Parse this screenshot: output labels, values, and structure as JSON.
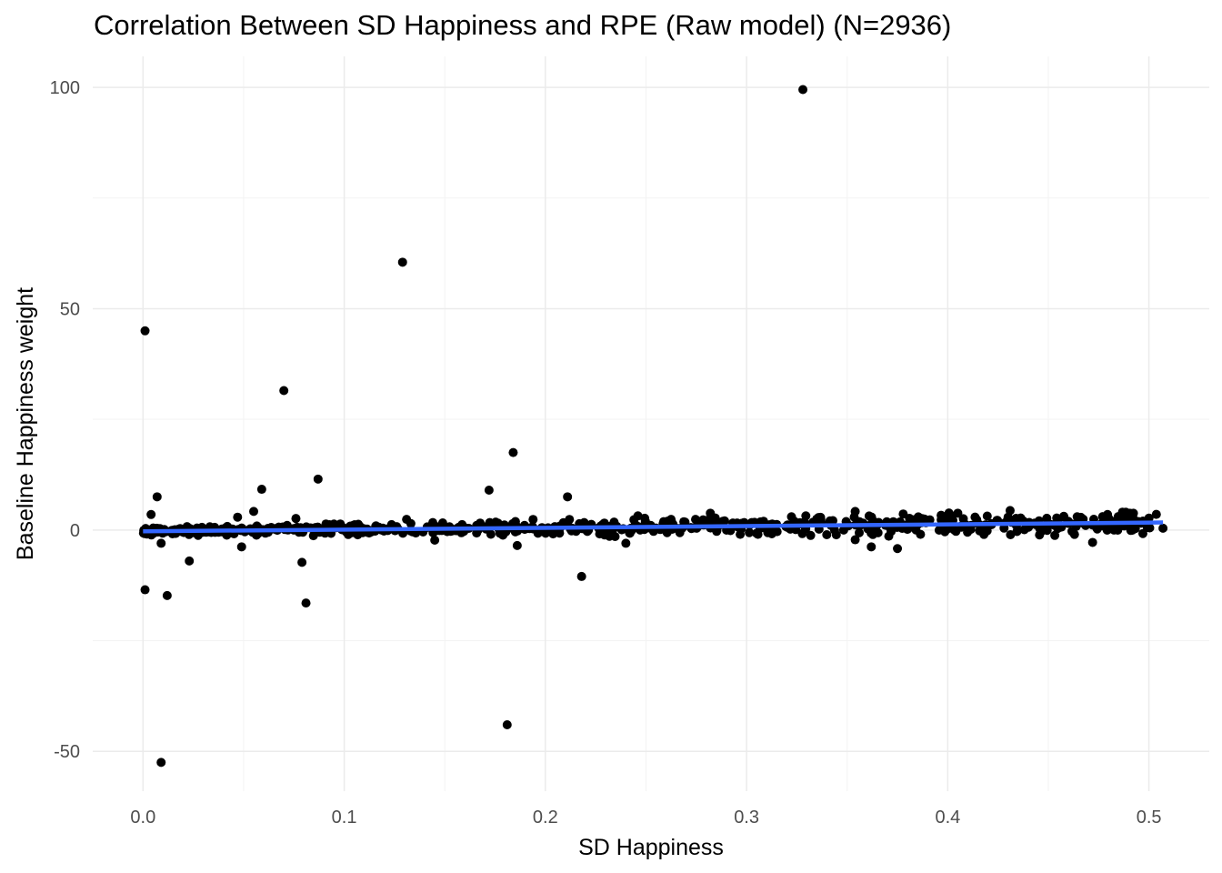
{
  "chart_data": {
    "type": "scatter",
    "title": "Correlation Between SD Happiness and RPE (Raw model) (N=2936)",
    "xlabel": "SD Happiness",
    "ylabel": "Baseline Happiness weight",
    "xlim": [
      -0.025,
      0.53
    ],
    "ylim": [
      -59,
      107
    ],
    "x_ticks": [
      0.0,
      0.1,
      0.2,
      0.3,
      0.4,
      0.5
    ],
    "x_tick_labels": [
      "0.0",
      "0.1",
      "0.2",
      "0.3",
      "0.4",
      "0.5"
    ],
    "y_ticks": [
      -50,
      0,
      50,
      100
    ],
    "y_tick_labels": [
      "-50",
      "0",
      "50",
      "100"
    ],
    "grid": true,
    "legend": "none",
    "colors": {
      "points": "#000000",
      "fit_line": "#3366ff",
      "grid_major": "#ebebeb",
      "grid_minor": "#f3f3f3"
    },
    "fit_line": {
      "x": [
        0.0,
        0.507
      ],
      "y": [
        -0.3,
        1.7
      ]
    },
    "points_outliers": [
      {
        "x": 0.328,
        "y": 99.5
      },
      {
        "x": 0.129,
        "y": 60.5
      },
      {
        "x": 0.001,
        "y": 45.0
      },
      {
        "x": 0.07,
        "y": 31.5
      },
      {
        "x": 0.184,
        "y": 17.5
      },
      {
        "x": 0.087,
        "y": 11.5
      },
      {
        "x": 0.059,
        "y": 9.2
      },
      {
        "x": 0.172,
        "y": 9.0
      },
      {
        "x": 0.007,
        "y": 7.5
      },
      {
        "x": 0.211,
        "y": 7.5
      },
      {
        "x": 0.055,
        "y": 4.2
      },
      {
        "x": 0.004,
        "y": 3.5
      },
      {
        "x": 0.354,
        "y": 4.2
      },
      {
        "x": 0.431,
        "y": 4.4
      },
      {
        "x": 0.405,
        "y": 3.8
      },
      {
        "x": 0.009,
        "y": -3.0
      },
      {
        "x": 0.023,
        "y": -7.0
      },
      {
        "x": 0.079,
        "y": -7.3
      },
      {
        "x": 0.001,
        "y": -13.5
      },
      {
        "x": 0.012,
        "y": -14.8
      },
      {
        "x": 0.081,
        "y": -16.5
      },
      {
        "x": 0.218,
        "y": -10.5
      },
      {
        "x": 0.181,
        "y": -44.0
      },
      {
        "x": 0.009,
        "y": -52.5
      },
      {
        "x": 0.049,
        "y": -3.8
      },
      {
        "x": 0.186,
        "y": -3.5
      },
      {
        "x": 0.362,
        "y": -3.8
      },
      {
        "x": 0.375,
        "y": -4.2
      },
      {
        "x": 0.472,
        "y": -2.8
      },
      {
        "x": 0.463,
        "y": -1.0
      },
      {
        "x": 0.491,
        "y": -0.1
      },
      {
        "x": 0.497,
        "y": -0.8
      },
      {
        "x": 0.507,
        "y": 0.4
      },
      {
        "x": 0.487,
        "y": 2.4
      },
      {
        "x": 0.282,
        "y": 3.8
      },
      {
        "x": 0.246,
        "y": 3.2
      },
      {
        "x": 0.131,
        "y": 2.4
      },
      {
        "x": 0.076,
        "y": 2.6
      },
      {
        "x": 0.047,
        "y": 2.9
      },
      {
        "x": 0.145,
        "y": -2.3
      },
      {
        "x": 0.24,
        "y": -3.0
      },
      {
        "x": 0.354,
        "y": -2.2
      },
      {
        "x": 0.418,
        "y": -1.0
      },
      {
        "x": 0.385,
        "y": 1.2
      }
    ],
    "points_band": {
      "description_count": "remaining points cluster tightly around the fit line",
      "x_range": [
        0.0,
        0.507
      ],
      "y_spread": 1.6
    }
  }
}
